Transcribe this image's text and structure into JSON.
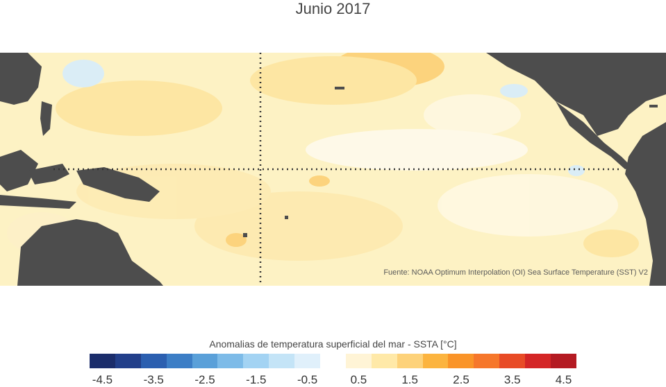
{
  "title": "Junio 2017",
  "source": "Fuente: NOAA Optimum Interpolation (OI) Sea Surface Temperature (SST) V2",
  "legend": {
    "label": "Anomalias de temperatura superficial del mar - SSTA  [°C]",
    "colors": [
      "#1b2d6b",
      "#223f8a",
      "#2b5fb0",
      "#3c7ec6",
      "#5aa0d9",
      "#7dbbe8",
      "#a3d3f3",
      "#c4e4f7",
      "#e0f0fb",
      "#ffffff",
      "#fff4d6",
      "#ffe9a8",
      "#fdd27a",
      "#fcb43f",
      "#fa9428",
      "#f6772b",
      "#e84b26",
      "#d42526",
      "#b41a22"
    ],
    "ticks": [
      "-4.5",
      "-3.5",
      "-2.5",
      "-1.5",
      "-0.5",
      "0.5",
      "1.5",
      "2.5",
      "3.5",
      "4.5"
    ]
  },
  "map": {
    "ocean_base_color": "#fdf2c4",
    "land_color": "#4d4d4d",
    "equator_line": "dotted",
    "dateline_line": "dotted"
  }
}
